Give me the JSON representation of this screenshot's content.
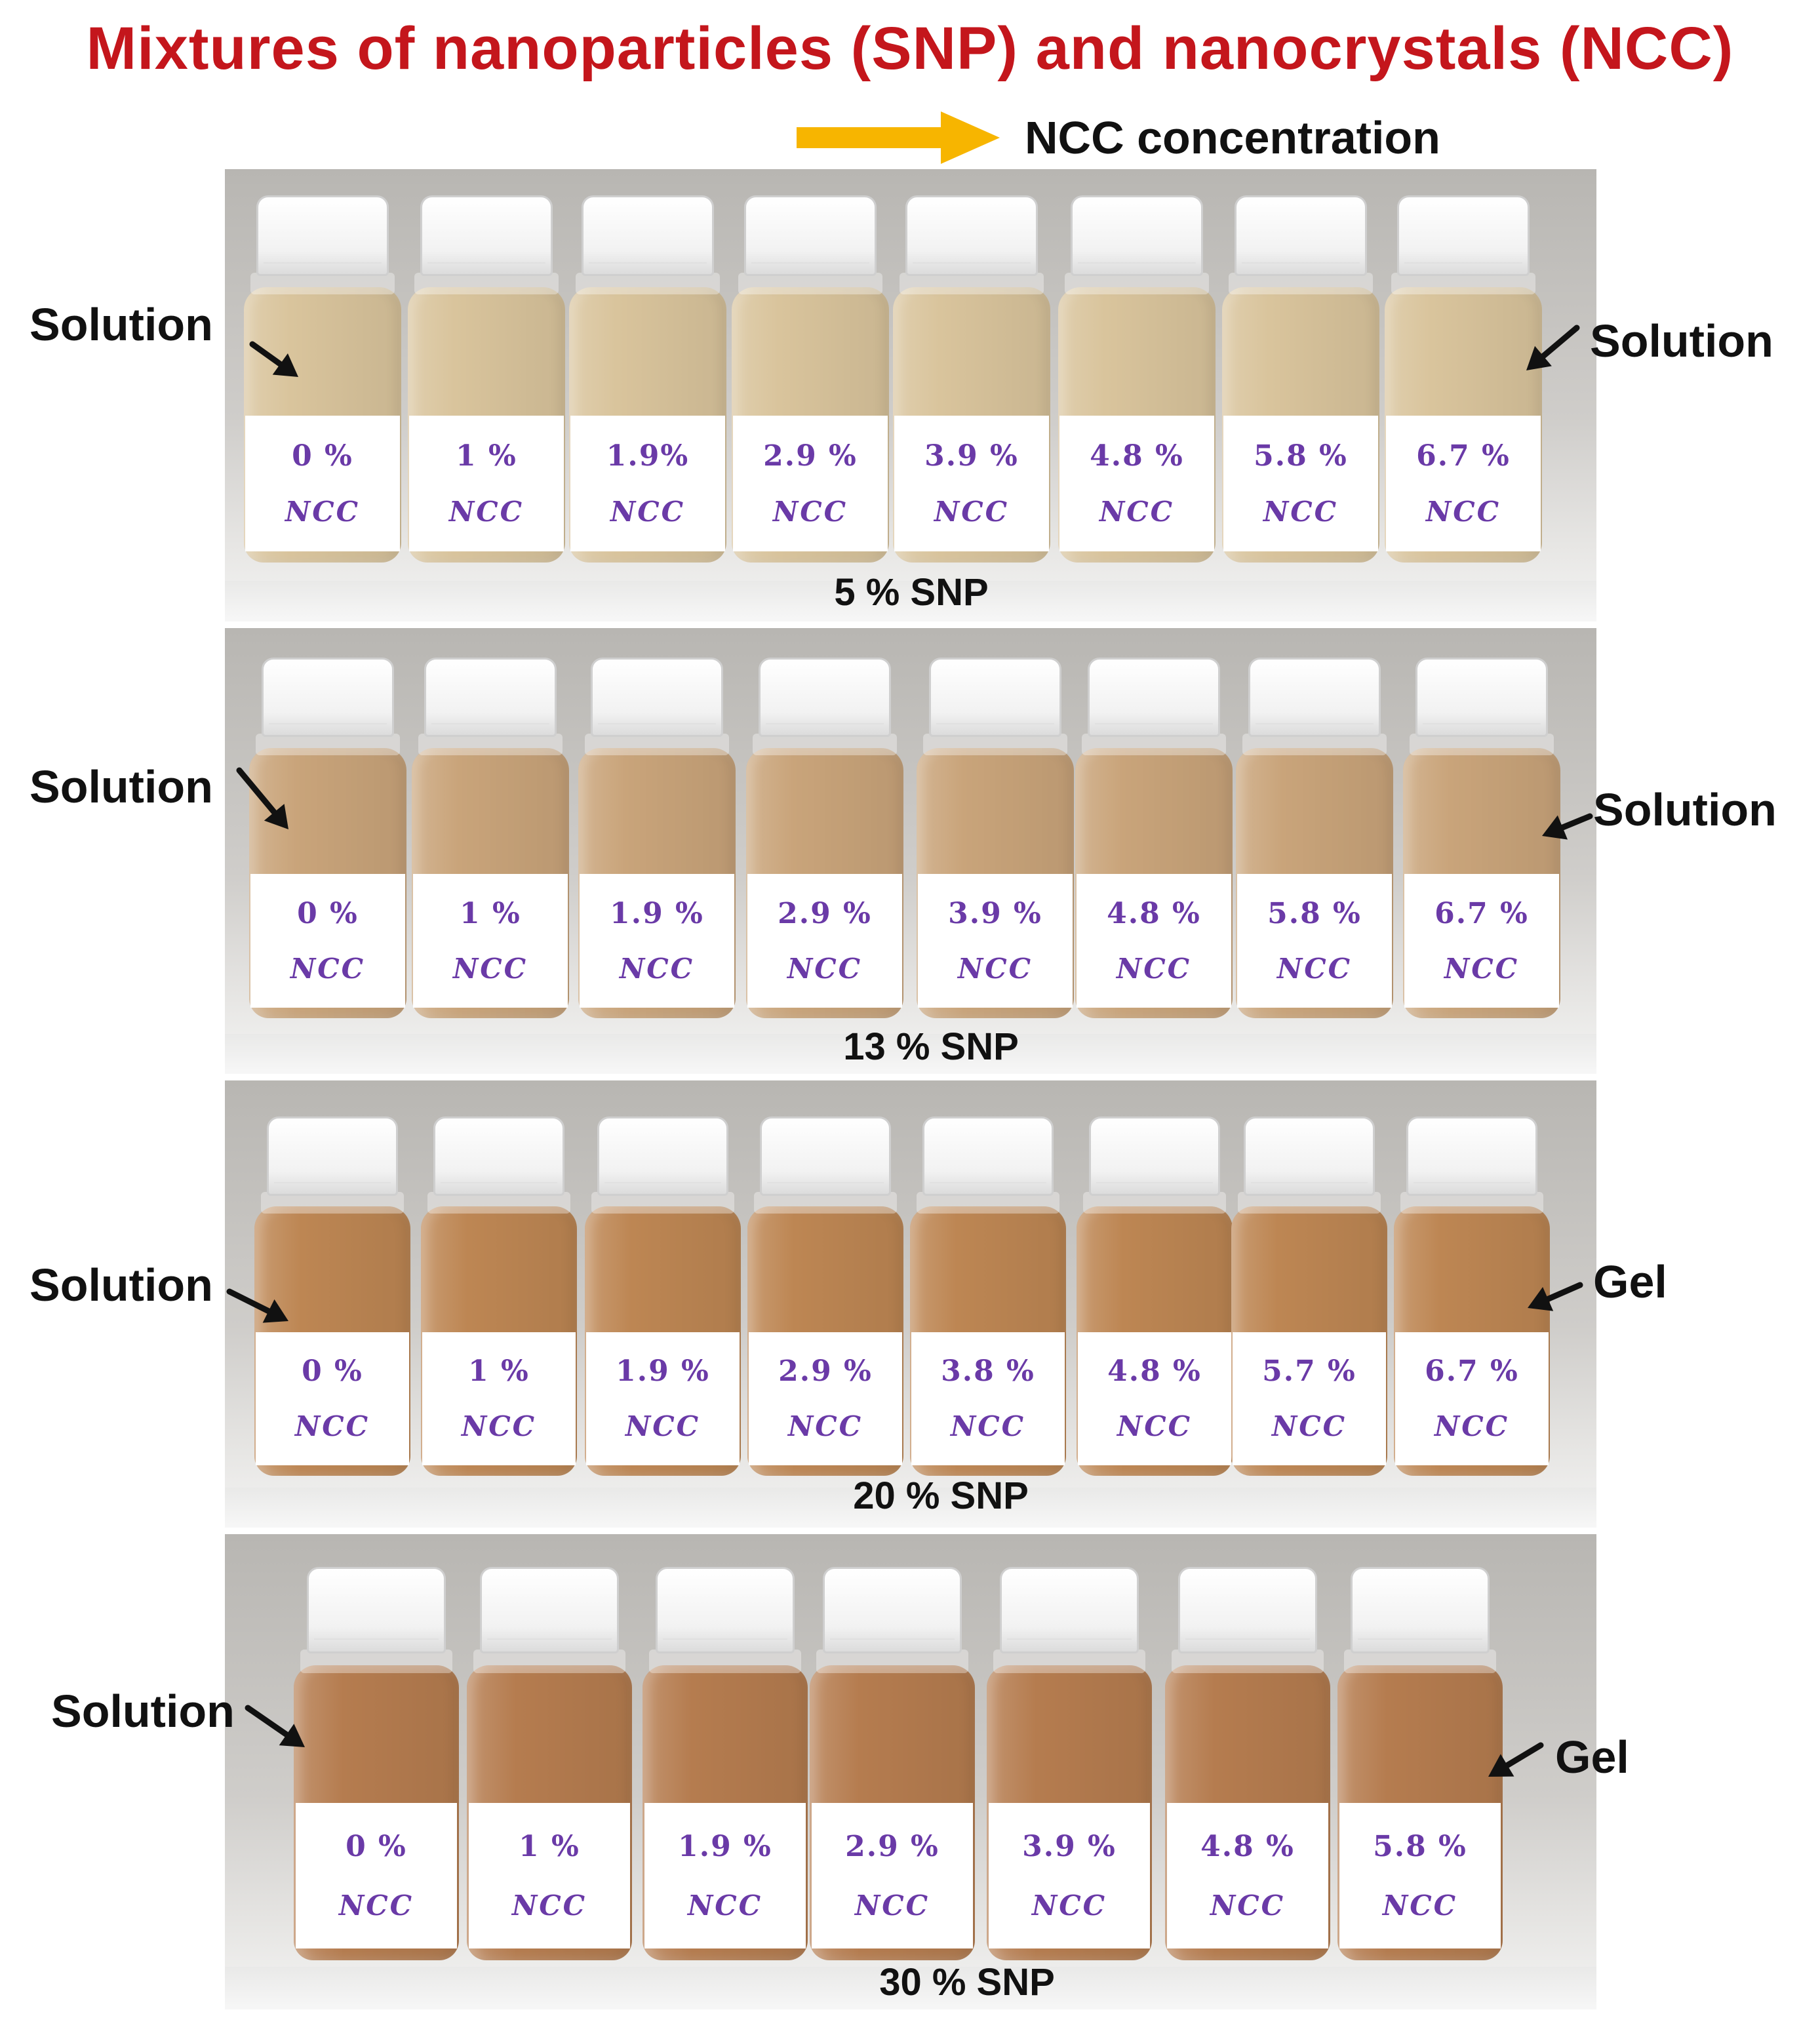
{
  "title": "Mixtures of nanoparticles (SNP) and nanocrystals (NCC)",
  "direction": {
    "label": "NCC concentration",
    "arrow_color": "#f7b500"
  },
  "colors": {
    "title": "#c4161c",
    "label_text": "#6a3aa7"
  },
  "panels": [
    {
      "snp_label": "5 % SNP",
      "left_state": "Solution",
      "right_state": "Solution",
      "liquid_color": "#d9c49c",
      "vials": [
        {
          "pct": "0 %",
          "ncc": "NCC"
        },
        {
          "pct": "1 %",
          "ncc": "NCC"
        },
        {
          "pct": "1.9%",
          "ncc": "NCC"
        },
        {
          "pct": "2.9 %",
          "ncc": "NCC"
        },
        {
          "pct": "3.9 %",
          "ncc": "NCC"
        },
        {
          "pct": "4.8 %",
          "ncc": "NCC"
        },
        {
          "pct": "5.8 %",
          "ncc": "NCC"
        },
        {
          "pct": "6.7 %",
          "ncc": "NCC"
        }
      ]
    },
    {
      "snp_label": "13 % SNP",
      "left_state": "Solution",
      "right_state": "Solution",
      "liquid_color": "#c9a47a",
      "vials": [
        {
          "pct": "0 %",
          "ncc": "NCC"
        },
        {
          "pct": "1 %",
          "ncc": "NCC"
        },
        {
          "pct": "1.9 %",
          "ncc": "NCC"
        },
        {
          "pct": "2.9 %",
          "ncc": "NCC"
        },
        {
          "pct": "3.9 %",
          "ncc": "NCC"
        },
        {
          "pct": "4.8 %",
          "ncc": "NCC"
        },
        {
          "pct": "5.8 %",
          "ncc": "NCC"
        },
        {
          "pct": "6.7 %",
          "ncc": "NCC"
        }
      ]
    },
    {
      "snp_label": "20 % SNP",
      "left_state": "Solution",
      "right_state": "Gel",
      "liquid_color": "#bd8653",
      "vials": [
        {
          "pct": "0 %",
          "ncc": "NCC"
        },
        {
          "pct": "1 %",
          "ncc": "NCC"
        },
        {
          "pct": "1.9 %",
          "ncc": "NCC"
        },
        {
          "pct": "2.9 %",
          "ncc": "NCC"
        },
        {
          "pct": "3.8 %",
          "ncc": "NCC"
        },
        {
          "pct": "4.8 %",
          "ncc": "NCC"
        },
        {
          "pct": "5.7 %",
          "ncc": "NCC"
        },
        {
          "pct": "6.7 %",
          "ncc": "NCC"
        }
      ]
    },
    {
      "snp_label": "30 % SNP",
      "left_state": "Solution",
      "right_state": "Gel",
      "liquid_color": "#b57c4f",
      "vials": [
        {
          "pct": "0 %",
          "ncc": "NCC"
        },
        {
          "pct": "1 %",
          "ncc": "NCC"
        },
        {
          "pct": "1.9 %",
          "ncc": "NCC"
        },
        {
          "pct": "2.9 %",
          "ncc": "NCC"
        },
        {
          "pct": "3.9 %",
          "ncc": "NCC"
        },
        {
          "pct": "4.8 %",
          "ncc": "NCC"
        },
        {
          "pct": "5.8 %",
          "ncc": "NCC"
        }
      ]
    }
  ]
}
